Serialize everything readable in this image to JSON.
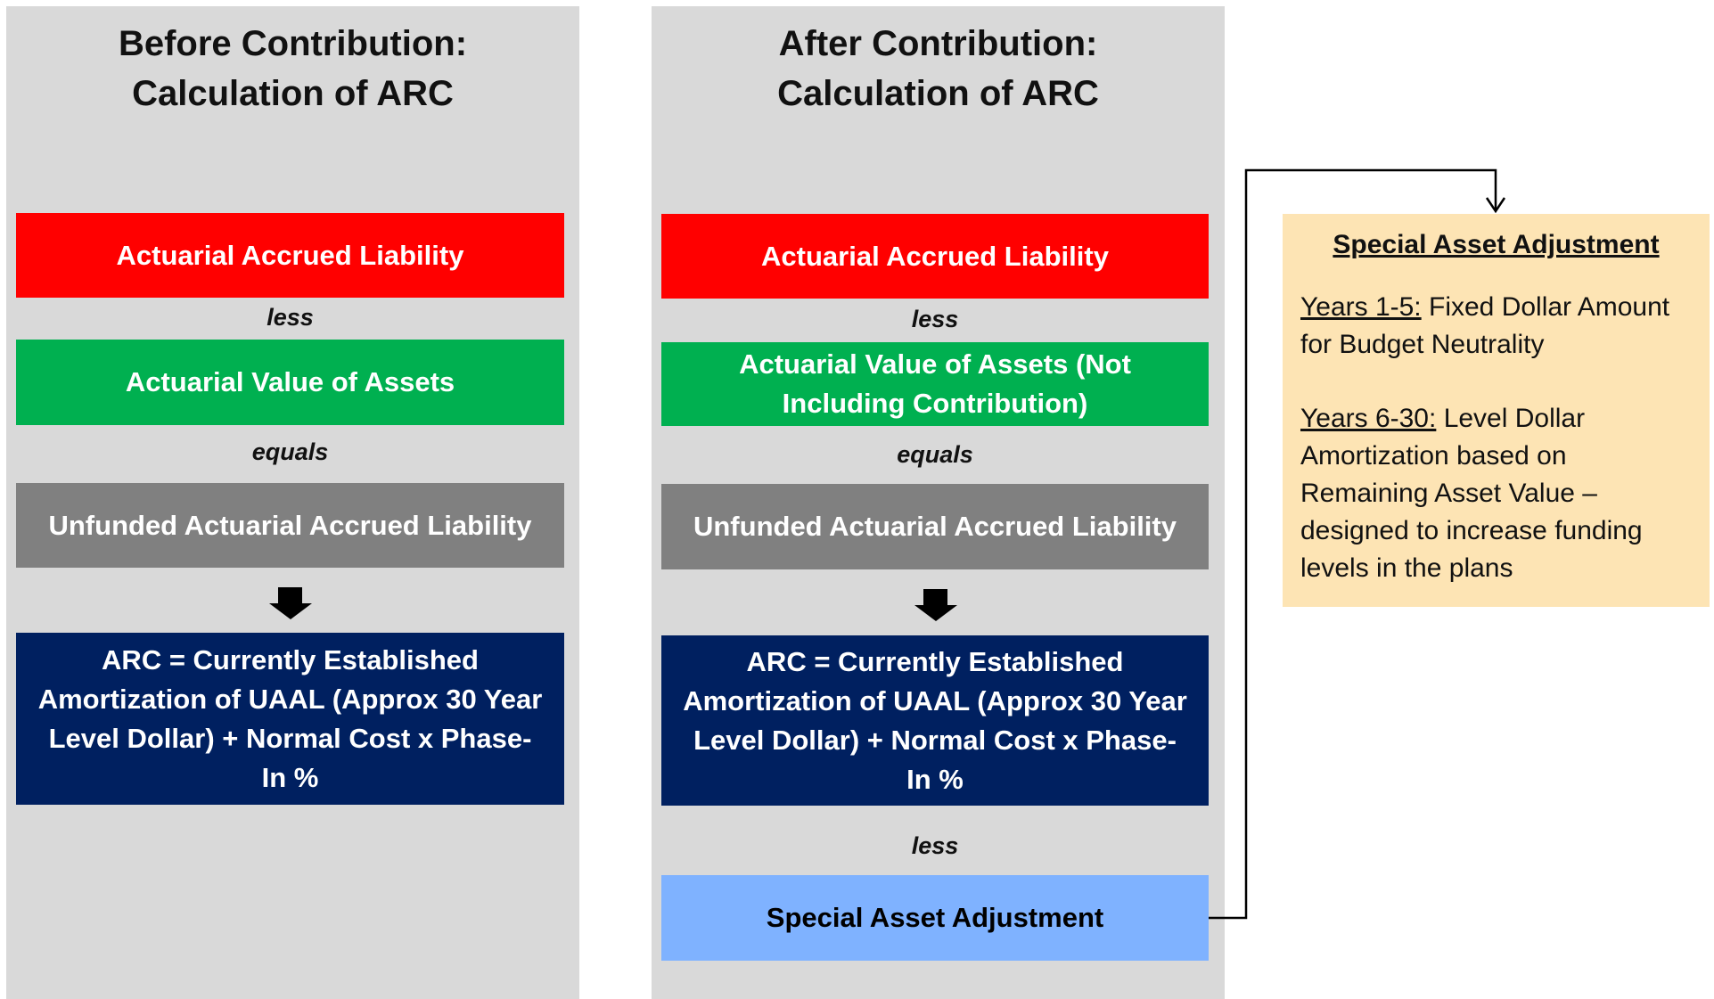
{
  "panels": [
    {
      "title": [
        "Before Contribution:",
        "Calculation of ARC"
      ],
      "boxes": [
        "Actuarial Accrued Liability",
        "less",
        "Actuarial Value of Assets",
        "equals",
        "Unfunded Actuarial Accrued Liability",
        "ARC = Currently Established Amortization of UAAL (Approx 30 Year Level Dollar) + Normal Cost x Phase-In %"
      ]
    },
    {
      "title": [
        "After Contribution:",
        "Calculation of ARC"
      ],
      "boxes": [
        "Actuarial Accrued Liability",
        "less",
        "Actuarial Value of Assets (Not Including Contribution)",
        "equals",
        "Unfunded Actuarial Accrued Liability",
        "ARC = Currently Established Amortization of UAAL (Approx 30 Year Level Dollar) + Normal Cost x Phase-In %",
        "less",
        "Special Asset Adjustment"
      ]
    }
  ],
  "note": {
    "title": "Special Asset Adjustment",
    "items": [
      {
        "label": "Years 1-5:",
        "text": "Fixed Dollar Amount for Budget Neutrality"
      },
      {
        "label": "Years 6-30:",
        "text": "Level Dollar Amortization based on Remaining Asset Value – designed to increase funding levels in the plans"
      }
    ]
  }
}
